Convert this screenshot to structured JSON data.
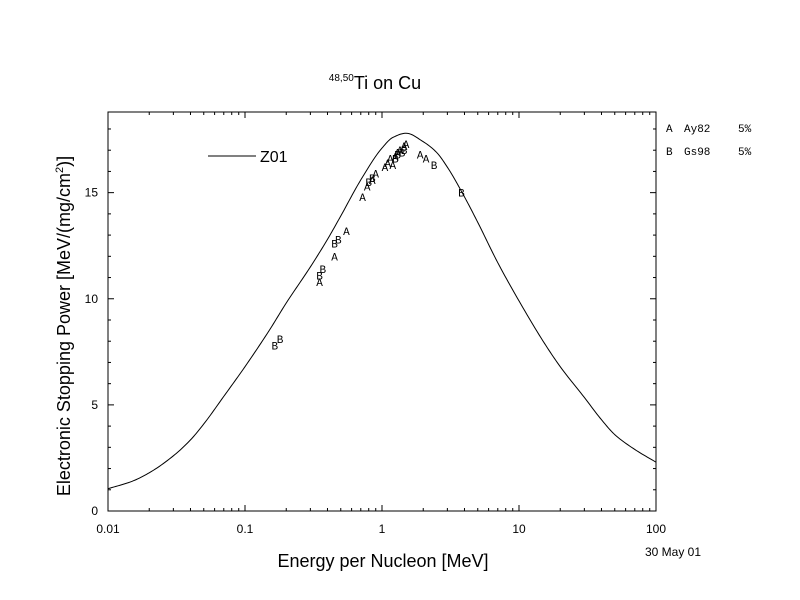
{
  "chart_data": {
    "type": "line",
    "title": {
      "superscript": "48,50",
      "main": "Ti on Cu"
    },
    "xlabel": "Energy per Nucleon [MeV]",
    "ylabel": {
      "before": "Electronic Stopping Power [MeV/(mg/cm",
      "sup": "2",
      "after": ")]"
    },
    "x_scale": "log",
    "xlim": [
      0.01,
      100
    ],
    "ylim": [
      0,
      18.8
    ],
    "x_ticks": [
      {
        "value": 0.01,
        "label": "0.01"
      },
      {
        "value": 0.1,
        "label": "0.1"
      },
      {
        "value": 1,
        "label": "1"
      },
      {
        "value": 10,
        "label": "10"
      },
      {
        "value": 100,
        "label": "100"
      }
    ],
    "y_ticks": [
      {
        "value": 0,
        "label": "0"
      },
      {
        "value": 5,
        "label": "5"
      },
      {
        "value": 10,
        "label": "10"
      },
      {
        "value": 15,
        "label": "15"
      }
    ],
    "date_stamp": "30 May 01",
    "grid": false,
    "legend": {
      "placement": "top-left",
      "line_label": "Z01"
    },
    "dataset_legend": [
      {
        "marker": "A",
        "text": "Ay82",
        "error": "5%"
      },
      {
        "marker": "B",
        "text": "Gs98",
        "error": "5%"
      }
    ],
    "series": [
      {
        "name": "Z01",
        "kind": "line",
        "x": [
          0.01,
          0.015,
          0.02,
          0.03,
          0.04,
          0.05,
          0.07,
          0.1,
          0.15,
          0.2,
          0.3,
          0.4,
          0.5,
          0.7,
          1.0,
          1.2,
          1.5,
          2.0,
          2.5,
          3.0,
          4.0,
          5.0,
          7.0,
          10,
          15,
          20,
          30,
          40,
          50,
          70,
          100
        ],
        "y": [
          1.05,
          1.4,
          1.8,
          2.6,
          3.35,
          4.1,
          5.4,
          6.8,
          8.5,
          9.8,
          11.5,
          12.8,
          13.9,
          15.6,
          17.1,
          17.6,
          17.8,
          17.4,
          16.9,
          16.2,
          14.8,
          13.6,
          11.7,
          9.9,
          8.0,
          6.8,
          5.35,
          4.3,
          3.6,
          2.9,
          2.3
        ]
      },
      {
        "name": "Ay82",
        "kind": "marker",
        "marker": "A",
        "x": [
          0.35,
          0.45,
          0.55,
          0.72,
          0.78,
          0.85,
          0.9,
          1.05,
          1.1,
          1.15,
          1.2,
          1.25,
          1.3,
          1.35,
          1.45,
          1.5,
          1.9,
          2.1
        ],
        "y": [
          10.8,
          12.0,
          13.2,
          14.8,
          15.3,
          15.6,
          15.9,
          16.2,
          16.4,
          16.6,
          16.3,
          16.7,
          16.9,
          17.0,
          17.2,
          17.3,
          16.8,
          16.6
        ]
      },
      {
        "name": "Gs98",
        "kind": "marker",
        "marker": "B",
        "x": [
          0.165,
          0.18,
          0.35,
          0.37,
          0.45,
          0.48,
          0.8,
          0.85,
          1.25,
          1.3,
          1.4,
          1.45,
          2.4,
          3.8
        ],
        "y": [
          7.8,
          8.1,
          11.1,
          11.4,
          12.6,
          12.8,
          15.5,
          15.7,
          16.6,
          16.8,
          16.9,
          17.0,
          16.3,
          15.0
        ]
      }
    ]
  }
}
